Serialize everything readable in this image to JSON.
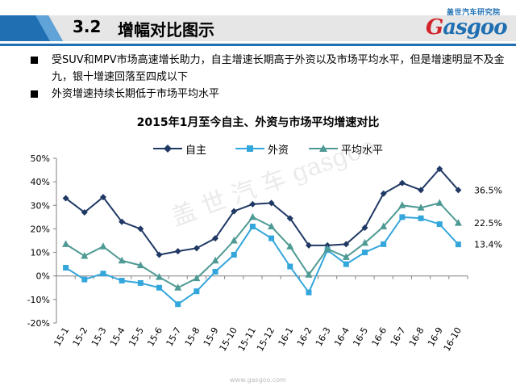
{
  "header": {
    "section_number": "3.2",
    "section_title": "增幅对比图示",
    "logo_cn": "盖世汽车研究院",
    "logo_en_prefix": "G",
    "logo_en_rest": "asgoo"
  },
  "bullets": [
    "受SUV和MPV市场高速增长助力，自主增速长期高于外资以及市场平均水平，但是增速明显不及金九，银十增速回落至四成以下",
    "外资增速持续长期低于市场平均水平"
  ],
  "watermark": "盖 世 汽 车 gasgoo",
  "footer_url": "www.gasgoo.com",
  "chart_data": {
    "type": "line",
    "title": "2015年1月至今自主、外资与市场平均增速对比",
    "xlabel": "",
    "ylabel": "",
    "ylim": [
      -20,
      50
    ],
    "ytick_step": 10,
    "grid": false,
    "legend_position": "top",
    "categories": [
      "15-1",
      "15-2",
      "15-3",
      "15-4",
      "15-5",
      "15-6",
      "15-7",
      "15-8",
      "15-9",
      "15-10",
      "15-11",
      "15-12",
      "16-1",
      "16-2",
      "16-3",
      "16-4",
      "16-5",
      "16-6",
      "16-7",
      "16-8",
      "16-9",
      "16-10"
    ],
    "series": [
      {
        "name": "自主",
        "color": "#1f3864",
        "marker": "diamond",
        "values": [
          33,
          27,
          33.5,
          23,
          20,
          9,
          10.5,
          11.8,
          16,
          27.5,
          30.5,
          31,
          24.5,
          13,
          13,
          13.5,
          20.5,
          35,
          39.5,
          36.5,
          45.5,
          36.5
        ],
        "end_label": "36.5%"
      },
      {
        "name": "外资",
        "color": "#33a6dc",
        "marker": "square",
        "values": [
          3.5,
          -1.5,
          1,
          -2,
          -3,
          -5,
          -12,
          -6.5,
          1.8,
          9,
          21,
          16,
          4,
          -7,
          11,
          5,
          10,
          13.5,
          25,
          24.5,
          22,
          13.4
        ],
        "end_label": "13.4%"
      },
      {
        "name": "平均水平",
        "color": "#4f9a94",
        "marker": "triangle",
        "values": [
          13.5,
          8.5,
          12.5,
          6.5,
          4.5,
          -0.5,
          -5,
          -1,
          6.5,
          15,
          25,
          21,
          12.5,
          0.5,
          11.5,
          8,
          14,
          21,
          30,
          29,
          31,
          22.5
        ],
        "end_label": "22.5%"
      }
    ]
  }
}
